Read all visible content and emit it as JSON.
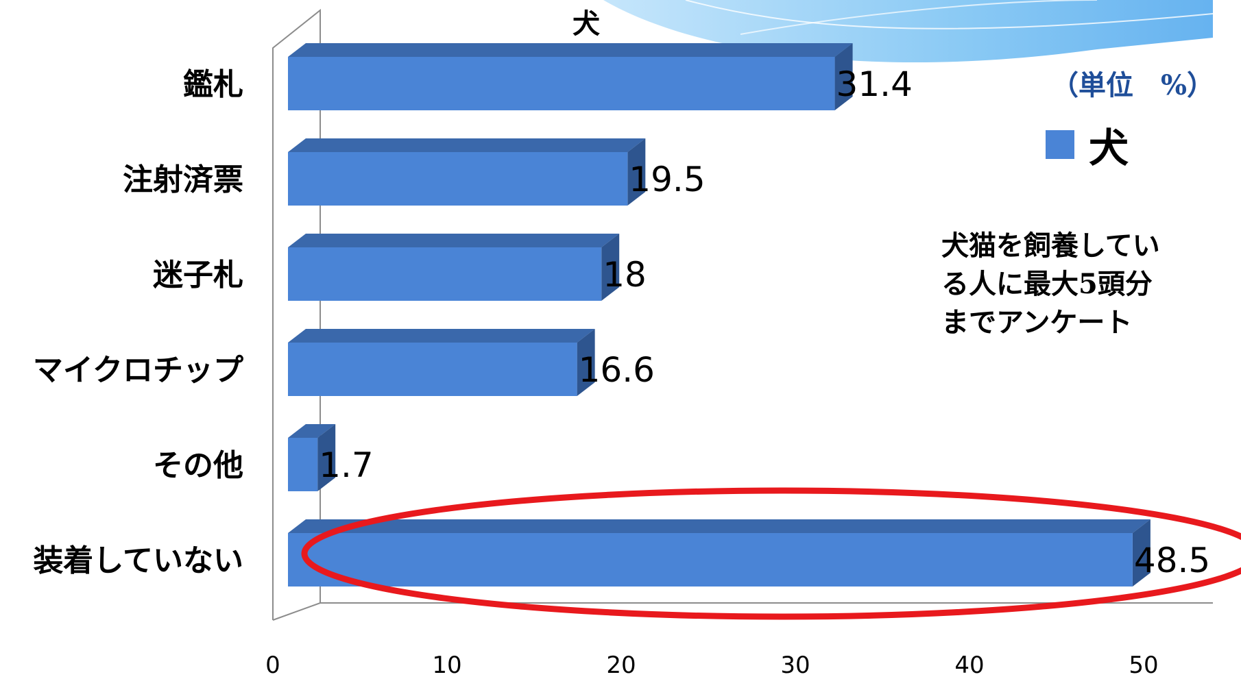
{
  "chart_data": {
    "type": "bar",
    "orientation": "horizontal",
    "title": "犬",
    "unit_label": "（単位　%）",
    "categories": [
      "鑑札",
      "注射済票",
      "迷子札",
      "マイクロチップ",
      "その他",
      "装着していない"
    ],
    "series": [
      {
        "name": "犬",
        "values": [
          31.4,
          19.5,
          18,
          16.6,
          1.7,
          48.5
        ],
        "color": "#4a84d6"
      }
    ],
    "value_labels": [
      "31.4",
      "19.5",
      "18",
      "16.6",
      "1.7",
      "48.5"
    ],
    "xticks": [
      "0",
      "10",
      "20",
      "30",
      "40",
      "50"
    ],
    "xlim": [
      0,
      50
    ],
    "legend_position": "right",
    "annotation": [
      "犬猫を飼養してい",
      "る人に最大5頭分",
      "までアンケート"
    ],
    "highlight": {
      "category": "装着していない",
      "shape": "ellipse",
      "color": "#e8191d"
    },
    "colors": {
      "bar_front": "#4a84d6",
      "bar_top": "#3a68ab",
      "bar_side": "#2e558f",
      "wave": "#7cc3f3"
    }
  }
}
